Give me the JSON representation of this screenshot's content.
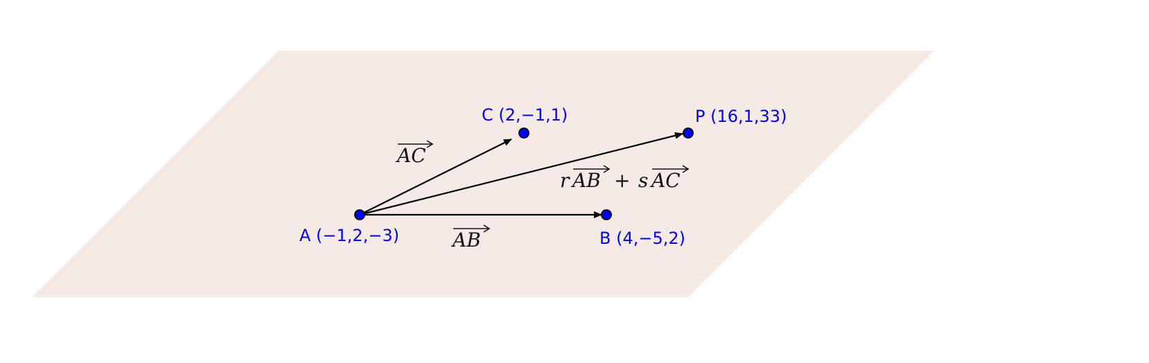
{
  "colors": {
    "plane_fill": "#f5eae6",
    "point_fill": "#0000ff",
    "point_stroke": "#000000",
    "label": "#0000ff",
    "vector": "#000000"
  },
  "points": [
    {
      "id": "A",
      "label": "A (−1,2,−3)"
    },
    {
      "id": "B",
      "label": "B (4,−5,2)"
    },
    {
      "id": "C",
      "label": "C (2,−1,1)"
    },
    {
      "id": "P",
      "label": "P (16,1,33)"
    }
  ],
  "vectors": {
    "ab": {
      "name": "AB"
    },
    "ac": {
      "name": "AC"
    },
    "ap": {
      "r": "r",
      "ab": "AB",
      "plus": "+",
      "s": "s",
      "ac": "AC"
    }
  }
}
